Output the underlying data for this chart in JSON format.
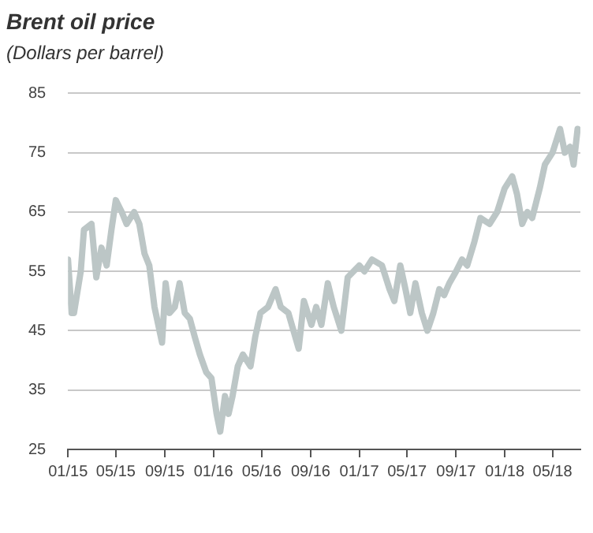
{
  "chart_data": {
    "type": "line",
    "title": "Brent oil price",
    "subtitle": "(Dollars per barrel)",
    "x": [
      "2015-01-01",
      "2015-01-10",
      "2015-01-16",
      "2015-02-02",
      "2015-02-10",
      "2015-03-01",
      "2015-03-13",
      "2015-03-26",
      "2015-04-08",
      "2015-04-20",
      "2015-05-01",
      "2015-05-16",
      "2015-05-28",
      "2015-06-16",
      "2015-06-29",
      "2015-07-12",
      "2015-07-24",
      "2015-08-06",
      "2015-08-25",
      "2015-09-03",
      "2015-09-13",
      "2015-09-26",
      "2015-10-08",
      "2015-10-21",
      "2015-11-03",
      "2015-11-15",
      "2015-11-28",
      "2015-12-14",
      "2015-12-27",
      "2016-01-09",
      "2016-01-18",
      "2016-01-30",
      "2016-02-08",
      "2016-02-18",
      "2016-03-02",
      "2016-03-15",
      "2016-04-03",
      "2016-04-15",
      "2016-04-28",
      "2016-05-17",
      "2016-06-05",
      "2016-06-18",
      "2016-07-07",
      "2016-08-02",
      "2016-08-15",
      "2016-09-03",
      "2016-09-15",
      "2016-09-28",
      "2016-10-14",
      "2016-10-29",
      "2016-11-17",
      "2016-12-03",
      "2017-01-01",
      "2017-01-14",
      "2017-02-02",
      "2017-02-27",
      "2017-03-18",
      "2017-03-30",
      "2017-04-14",
      "2017-04-27",
      "2017-05-09",
      "2017-05-22",
      "2017-06-07",
      "2017-06-21",
      "2017-07-06",
      "2017-07-21",
      "2017-08-02",
      "2017-08-15",
      "2017-09-01",
      "2017-09-16",
      "2017-09-29",
      "2017-10-17",
      "2017-11-01",
      "2017-11-24",
      "2017-12-13",
      "2018-01-01",
      "2018-01-20",
      "2018-02-01",
      "2018-02-14",
      "2018-02-27",
      "2018-03-11",
      "2018-03-30",
      "2018-04-12",
      "2018-05-01",
      "2018-05-20",
      "2018-06-01",
      "2018-06-14",
      "2018-06-23",
      "2018-07-03"
    ],
    "series": [
      {
        "color": "#bcc6c6",
        "values": [
          57,
          48,
          48,
          55,
          62,
          63,
          54,
          59,
          56,
          62,
          67,
          65,
          63,
          65,
          63,
          58,
          56,
          49,
          43,
          53,
          48,
          49,
          53,
          48,
          47,
          44,
          41,
          38,
          37,
          31,
          28,
          34,
          31,
          34,
          39,
          41,
          39,
          44,
          48,
          49,
          52,
          49,
          48,
          42,
          50,
          46,
          49,
          46,
          53,
          49,
          45,
          54,
          56,
          55,
          57,
          56,
          52,
          50,
          56,
          52,
          48,
          53,
          48,
          45,
          48,
          52,
          51,
          53,
          55,
          57,
          56,
          60,
          64,
          63,
          65,
          69,
          71,
          68,
          63,
          65,
          64,
          69,
          73,
          75,
          79,
          75,
          76,
          73,
          79
        ]
      }
    ],
    "xlim": [
      "2015-01-01",
      "2018-07-10"
    ],
    "xticks": [
      {
        "value": "2015-01-01",
        "label": "01/15"
      },
      {
        "value": "2015-05-01",
        "label": "05/15"
      },
      {
        "value": "2015-09-01",
        "label": "09/15"
      },
      {
        "value": "2016-01-01",
        "label": "01/16"
      },
      {
        "value": "2016-05-01",
        "label": "05/16"
      },
      {
        "value": "2016-09-01",
        "label": "09/16"
      },
      {
        "value": "2017-01-01",
        "label": "01/17"
      },
      {
        "value": "2017-05-01",
        "label": "05/17"
      },
      {
        "value": "2017-09-01",
        "label": "09/17"
      },
      {
        "value": "2018-01-01",
        "label": "01/18"
      },
      {
        "value": "2018-05-01",
        "label": "05/18"
      }
    ],
    "ylim": [
      25,
      85
    ],
    "yticks": [
      25,
      35,
      45,
      55,
      65,
      75,
      85
    ],
    "grid": "y",
    "legend": false,
    "marker": "none",
    "line_style": "solid"
  }
}
